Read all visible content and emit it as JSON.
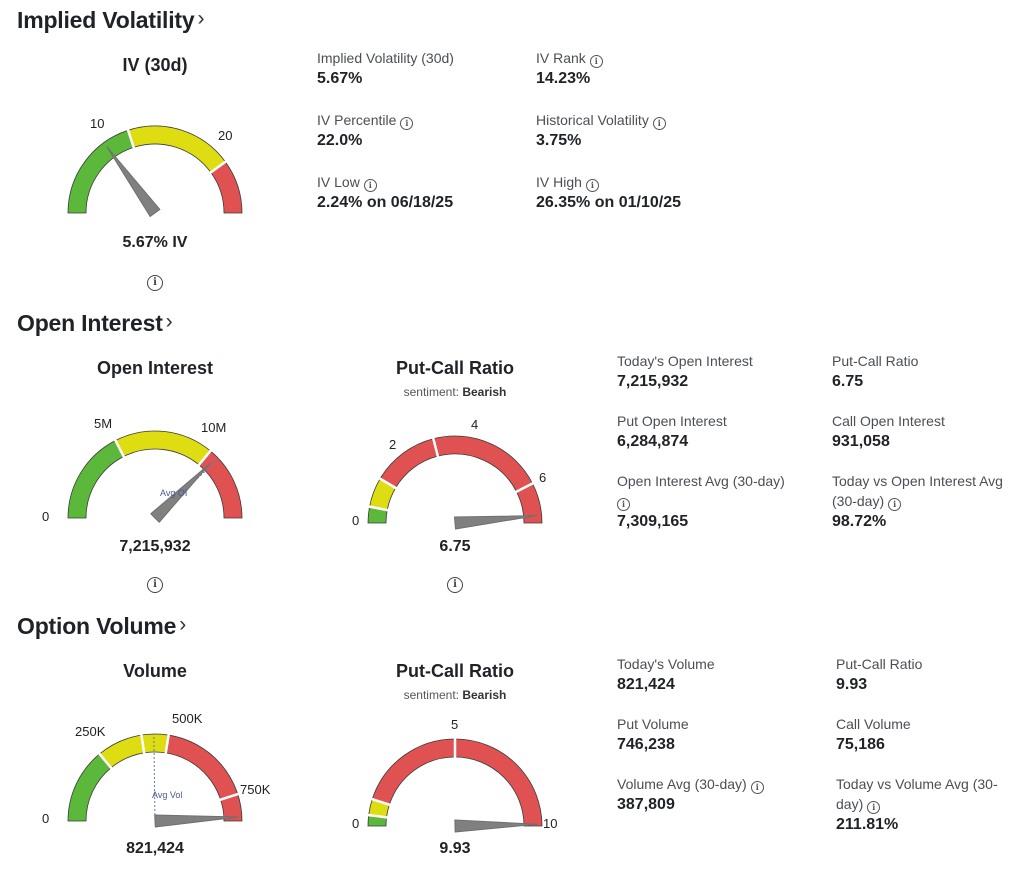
{
  "implied_volatility": {
    "title": "Implied Volatility",
    "gauge": {
      "title": "IV (30d)",
      "value_label": "5.67% IV",
      "value": 5.67,
      "min": 0,
      "max": 25,
      "ticks": [
        "10",
        "20"
      ],
      "bands": [
        {
          "from": 0,
          "to": 10,
          "color": "#5cb83a"
        },
        {
          "from": 10,
          "to": 20,
          "color": "#dedd12"
        },
        {
          "from": 20,
          "to": 25,
          "color": "#e05252"
        }
      ]
    },
    "stats": [
      {
        "label": "Implied Volatility (30d)",
        "value": "5.67%",
        "info": false
      },
      {
        "label": "IV Rank",
        "value": "14.23%",
        "info": true
      },
      {
        "label": "IV Percentile",
        "value": "22.0%",
        "info": true
      },
      {
        "label": "Historical Volatility",
        "value": "3.75%",
        "info": true
      },
      {
        "label": "IV Low",
        "value": "2.24% on 06/18/25",
        "info": true
      },
      {
        "label": "IV High",
        "value": "26.35% on 01/10/25",
        "info": true
      }
    ]
  },
  "open_interest": {
    "title": "Open Interest",
    "gauge": {
      "title": "Open Interest",
      "value_label": "7,215,932",
      "value": 7215932,
      "avg": 7309165,
      "avg_label": "Avg OI",
      "min": 0,
      "max": 15000000,
      "ticks": [
        "0",
        "5M",
        "10M"
      ]
    },
    "pcr": {
      "title": "Put-Call Ratio",
      "sentiment_prefix": "sentiment:",
      "sentiment": "Bearish",
      "value_label": "6.75",
      "value": 6.75,
      "min": 0,
      "max": 6.75,
      "ticks": [
        "0",
        "2",
        "4",
        "6"
      ]
    },
    "stats": [
      {
        "label": "Today's Open Interest",
        "value": "7,215,932"
      },
      {
        "label": "Put-Call Ratio",
        "value": "6.75"
      },
      {
        "label": "Put Open Interest",
        "value": "6,284,874"
      },
      {
        "label": "Call Open Interest",
        "value": "931,058"
      },
      {
        "label": "Open Interest Avg (30-day)",
        "value": "7,309,165"
      },
      {
        "label": "Today vs Open Interest Avg (30-day)",
        "value": "98.72%"
      }
    ]
  },
  "option_volume": {
    "title": "Option Volume",
    "gauge": {
      "title": "Volume",
      "value_label": "821,424",
      "value": 821424,
      "avg": 387809,
      "avg_label": "Avg Vol",
      "min": 0,
      "max": 821424,
      "ticks": [
        "0",
        "250K",
        "500K",
        "750K"
      ]
    },
    "pcr": {
      "title": "Put-Call Ratio",
      "sentiment_prefix": "sentiment:",
      "sentiment": "Bearish",
      "value_label": "9.93",
      "value": 9.93,
      "min": 0,
      "max": 10,
      "ticks": [
        "0",
        "5",
        "10"
      ]
    },
    "stats": [
      {
        "label": "Today's Volume",
        "value": "821,424"
      },
      {
        "label": "Put-Call Ratio",
        "value": "9.93"
      },
      {
        "label": "Put Volume",
        "value": "746,238"
      },
      {
        "label": "Call Volume",
        "value": "75,186"
      },
      {
        "label": "Volume Avg (30-day)",
        "value": "387,809"
      },
      {
        "label": "Today vs Volume Avg (30-day)",
        "value": "211.81%"
      }
    ]
  },
  "icons": {
    "info": "info-icon",
    "chevron": "chevron-right-icon"
  },
  "colors": {
    "green": "#5cb83a",
    "yellow": "#dedd12",
    "red": "#e05252",
    "needle": "#808080"
  }
}
